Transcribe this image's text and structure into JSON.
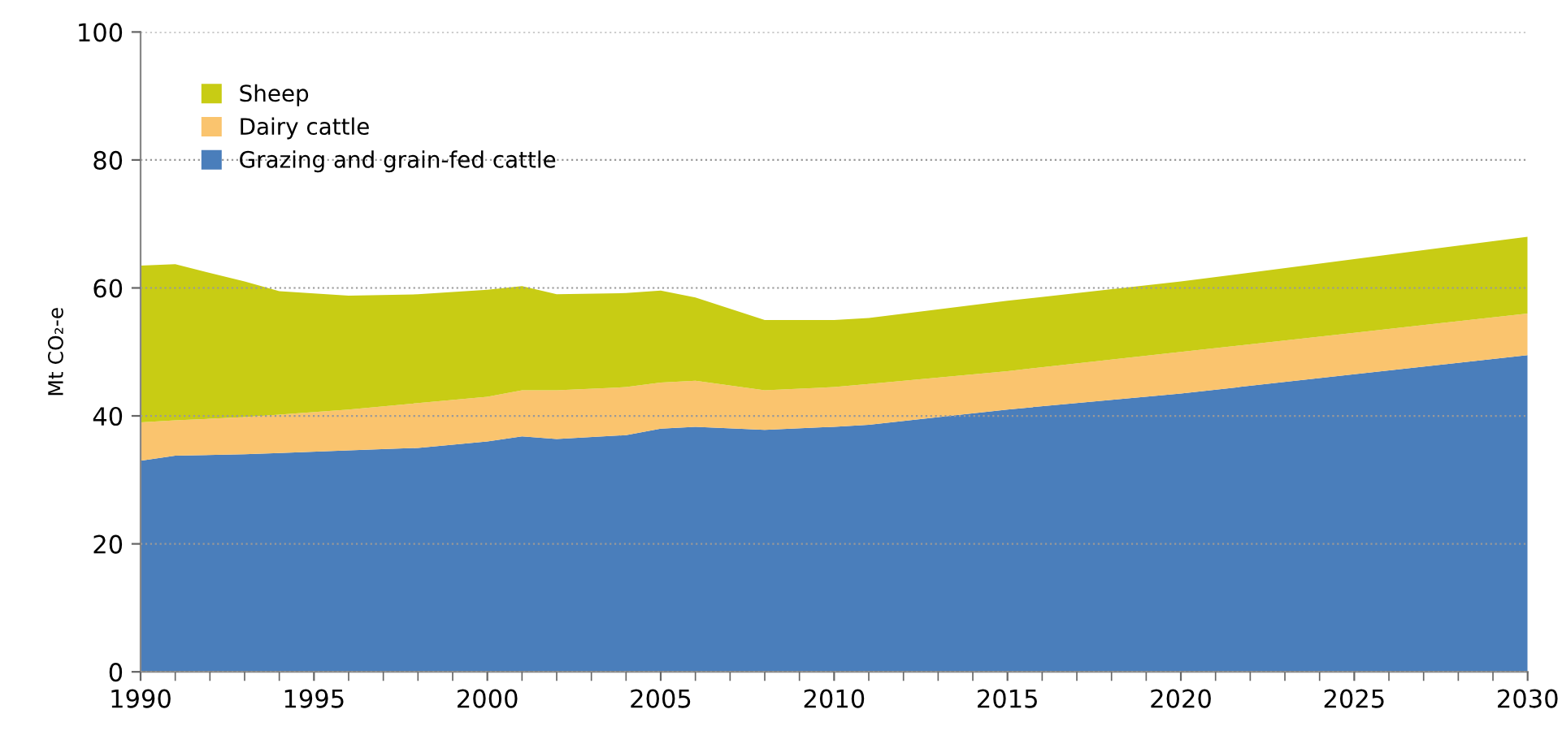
{
  "chart_data": {
    "type": "area",
    "stacked": true,
    "ylabel": "Mt CO₂-e",
    "x": [
      1990,
      1991,
      1993,
      1994,
      1996,
      1998,
      2000,
      2001,
      2002,
      2004,
      2005,
      2006,
      2008,
      2010,
      2011,
      2015,
      2020,
      2025,
      2030
    ],
    "series": [
      {
        "name": "Grazing and grain-fed cattle",
        "color": "#4a7ebb",
        "values": [
          33,
          33.8,
          34,
          34.2,
          34.6,
          35,
          36,
          36.8,
          36.4,
          37,
          38,
          38.3,
          37.8,
          38.3,
          38.6,
          41,
          43.5,
          46.5,
          49.5
        ]
      },
      {
        "name": "Dairy cattle",
        "color": "#fac46e",
        "values": [
          6,
          5.5,
          5.8,
          6,
          6.4,
          7,
          7,
          7.2,
          7.6,
          7.5,
          7.2,
          7.2,
          6.2,
          6.2,
          6.4,
          6,
          6.5,
          6.5,
          6.5
        ]
      },
      {
        "name": "Sheep",
        "color": "#c8cc14",
        "values": [
          24.5,
          24.4,
          21.2,
          19.3,
          17.8,
          17,
          16.7,
          16.3,
          15,
          14.7,
          14.4,
          13,
          11,
          10.5,
          10.3,
          11,
          11,
          11.5,
          12
        ]
      }
    ],
    "xlim": [
      1990,
      2030
    ],
    "xticks": [
      1990,
      1995,
      2000,
      2005,
      2010,
      2015,
      2020,
      2025,
      2030
    ],
    "ylim": [
      0,
      100
    ],
    "yticks": [
      0,
      20,
      40,
      60,
      80,
      100
    ],
    "grid": "y",
    "legend": "top left"
  }
}
